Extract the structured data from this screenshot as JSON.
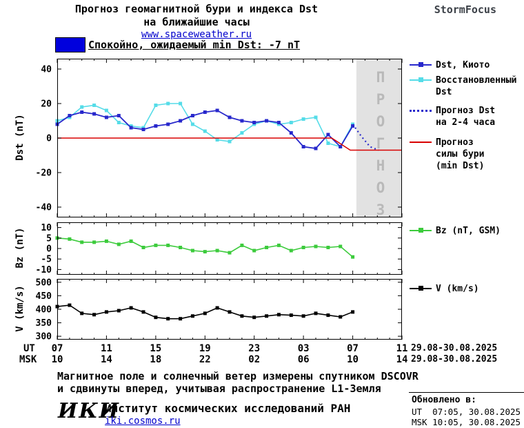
{
  "header": {
    "title_line1": "Прогноз геомагнитной бури и индекса Dst",
    "title_line2": "на ближайшие часы",
    "site_link": "www.spaceweather.ru",
    "brand": "StormFocus"
  },
  "status_banner": {
    "text": "Спокойно, ожидаемый min Dst: -7 nT"
  },
  "forecast_overlay_text": "ПРОГНОЗ",
  "colors": {
    "dst_kyoto": "#2828cc",
    "dst_restored": "#55dce8",
    "dst_forecast": "#2828cc",
    "storm_forecast": "#d80000",
    "bz": "#3ccb3c",
    "v": "#000000",
    "banner_swatch": "#0000dd",
    "forecast_zone": "#e2e2e2",
    "link": "#0000cc"
  },
  "legend_dst": [
    {
      "lines": [
        "Dst, Киото"
      ]
    },
    {
      "lines": [
        "Восстановленный",
        "Dst"
      ]
    },
    {
      "lines": [
        "Прогноз Dst",
        "на 2-4 часа"
      ]
    },
    {
      "lines": [
        "Прогноз",
        "силы бури",
        "(min Dst)"
      ]
    }
  ],
  "legend_bz": {
    "lines": [
      "Bz (nT, GSM)"
    ]
  },
  "legend_v": {
    "lines": [
      "V (km/s)"
    ]
  },
  "xaxis": {
    "ut_label": "UT",
    "msk_label": "MSK",
    "tick_hours": [
      7,
      11,
      15,
      19,
      23,
      27,
      31,
      35
    ],
    "ut_ticks": [
      "07",
      "11",
      "15",
      "19",
      "23",
      "03",
      "07",
      "11"
    ],
    "msk_ticks": [
      "10",
      "14",
      "18",
      "22",
      "02",
      "06",
      "10",
      "14"
    ],
    "ut_range": "29.08-30.08.2025",
    "msk_range": "29.08-30.08.2025"
  },
  "footer": {
    "line1": "Магнитное поле и солнечный ветер измерены спутником DSCOVR",
    "line2": "и сдвинуты вперед, учитывая распространение L1-Земля"
  },
  "logo": {
    "text": "ИКИ",
    "institute": "Институт космических исследований РАН",
    "site": "iki.cosmos.ru"
  },
  "updated": {
    "label": "Обновлено в:",
    "ut": "UT  07:05, 30.08.2025",
    "msk": "MSK 10:05, 30.08.2025"
  },
  "chart_data": [
    {
      "type": "line",
      "name": "dst",
      "ylabel": "Dst (nT)",
      "ylim": [
        -46,
        46
      ],
      "yticks": [
        40,
        20,
        0,
        -20,
        -40
      ],
      "xlim": [
        7,
        35
      ],
      "xticks": [
        7,
        11,
        15,
        19,
        23,
        27,
        31,
        35
      ],
      "forecast_zone": {
        "from": 31.3,
        "to": 35,
        "color": "#e2e2e2"
      },
      "series": [
        {
          "name": "Восстановленный Dst",
          "color": "#55dce8",
          "marker": "square",
          "width": 1.6,
          "x": [
            7,
            8,
            9,
            10,
            11,
            12,
            13,
            14,
            15,
            16,
            17,
            18,
            19,
            20,
            21,
            22,
            23,
            24,
            25,
            26,
            27,
            28,
            29,
            30,
            31
          ],
          "values": [
            10,
            12,
            18,
            19,
            16,
            9,
            7,
            6,
            19,
            20,
            20,
            8,
            4,
            -1,
            -2,
            3,
            8,
            10,
            8,
            9,
            11,
            12,
            -3,
            -5,
            8
          ]
        },
        {
          "name": "Dst, Киото",
          "color": "#2828cc",
          "marker": "square",
          "width": 1.8,
          "x": [
            7,
            8,
            9,
            10,
            11,
            12,
            13,
            14,
            15,
            16,
            17,
            18,
            19,
            20,
            21,
            22,
            23,
            24,
            25,
            26,
            27,
            28,
            29,
            30,
            31
          ],
          "values": [
            8,
            13,
            15,
            14,
            12,
            13,
            6,
            5,
            7,
            8,
            10,
            13,
            15,
            16,
            12,
            10,
            9,
            10,
            9,
            3,
            -5,
            -6,
            2,
            -5,
            7
          ]
        },
        {
          "name": "Прогноз Dst на 2-4 часа",
          "color": "#2828cc",
          "dash": "2,4",
          "width": 2.2,
          "x": [
            31,
            31.7,
            32.4,
            33.1
          ],
          "values": [
            8,
            1,
            -5,
            -7
          ]
        },
        {
          "name": "Прогноз силы бури (min Dst)",
          "color": "#d80000",
          "width": 1.6,
          "x": [
            7,
            29.3,
            30.8,
            35
          ],
          "values": [
            0,
            0,
            -7,
            -7
          ]
        }
      ]
    },
    {
      "type": "line",
      "name": "bz",
      "ylabel": "Bz (nT)",
      "ylim": [
        -12.5,
        12.5
      ],
      "yticks": [
        10,
        5,
        0,
        -5,
        -10
      ],
      "xlim": [
        7,
        35
      ],
      "xticks": [
        7,
        11,
        15,
        19,
        23,
        27,
        31,
        35
      ],
      "series": [
        {
          "name": "Bz (nT, GSM)",
          "color": "#3ccb3c",
          "marker": "square",
          "width": 1.6,
          "x": [
            7,
            8,
            9,
            10,
            11,
            12,
            13,
            14,
            15,
            16,
            17,
            18,
            19,
            20,
            21,
            22,
            23,
            24,
            25,
            26,
            27,
            28,
            29,
            30,
            31
          ],
          "values": [
            5,
            4.5,
            3,
            3,
            3.5,
            2,
            3.5,
            0.5,
            1.5,
            1.5,
            0.5,
            -1,
            -1.5,
            -1,
            -2,
            1.5,
            -1,
            0.5,
            1.5,
            -1,
            0.5,
            1,
            0.5,
            1,
            -4
          ]
        }
      ]
    },
    {
      "type": "line",
      "name": "v",
      "ylabel": "V (km/s)",
      "ylim": [
        287.5,
        512.5
      ],
      "yticks": [
        500,
        450,
        400,
        350,
        300
      ],
      "xlim": [
        7,
        35
      ],
      "xticks": [
        7,
        11,
        15,
        19,
        23,
        27,
        31,
        35
      ],
      "series": [
        {
          "name": "V (km/s)",
          "color": "#000000",
          "marker": "square",
          "width": 1.6,
          "x": [
            7,
            8,
            9,
            10,
            11,
            12,
            13,
            14,
            15,
            16,
            17,
            18,
            19,
            20,
            21,
            22,
            23,
            24,
            25,
            26,
            27,
            28,
            29,
            30,
            31
          ],
          "values": [
            410,
            415,
            385,
            380,
            390,
            395,
            405,
            390,
            370,
            365,
            365,
            375,
            385,
            405,
            390,
            375,
            370,
            375,
            380,
            378,
            375,
            385,
            378,
            372,
            390
          ]
        }
      ]
    }
  ]
}
